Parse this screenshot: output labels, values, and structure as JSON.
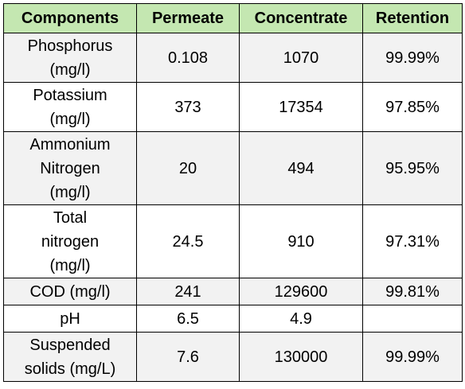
{
  "colors": {
    "header_bg": "#c4e7b1",
    "row_shaded_bg": "#f2f2f2",
    "row_plain_bg": "#ffffff",
    "border": "#000000"
  },
  "table": {
    "headers": [
      "Components",
      "Permeate",
      "Concentrate",
      "Retention"
    ],
    "rows": [
      {
        "component": "Phosphorus (mg/l)",
        "permeate": "0.108",
        "concentrate": "1070",
        "retention": "99.99%"
      },
      {
        "component": "Potassium (mg/l)",
        "permeate": "373",
        "concentrate": "17354",
        "retention": "97.85%"
      },
      {
        "component": "Ammonium Nitrogen (mg/l)",
        "permeate": "20",
        "concentrate": "494",
        "retention": "95.95%"
      },
      {
        "component": "Total nitrogen (mg/l)",
        "permeate": "24.5",
        "concentrate": "910",
        "retention": "97.31%"
      },
      {
        "component": "COD (mg/l)",
        "permeate": "241",
        "concentrate": "129600",
        "retention": "99.81%"
      },
      {
        "component": "pH",
        "permeate": "6.5",
        "concentrate": "4.9",
        "retention": ""
      },
      {
        "component": "Suspended solids (mg/L)",
        "permeate": "7.6",
        "concentrate": "130000",
        "retention": "99.99%"
      }
    ]
  }
}
